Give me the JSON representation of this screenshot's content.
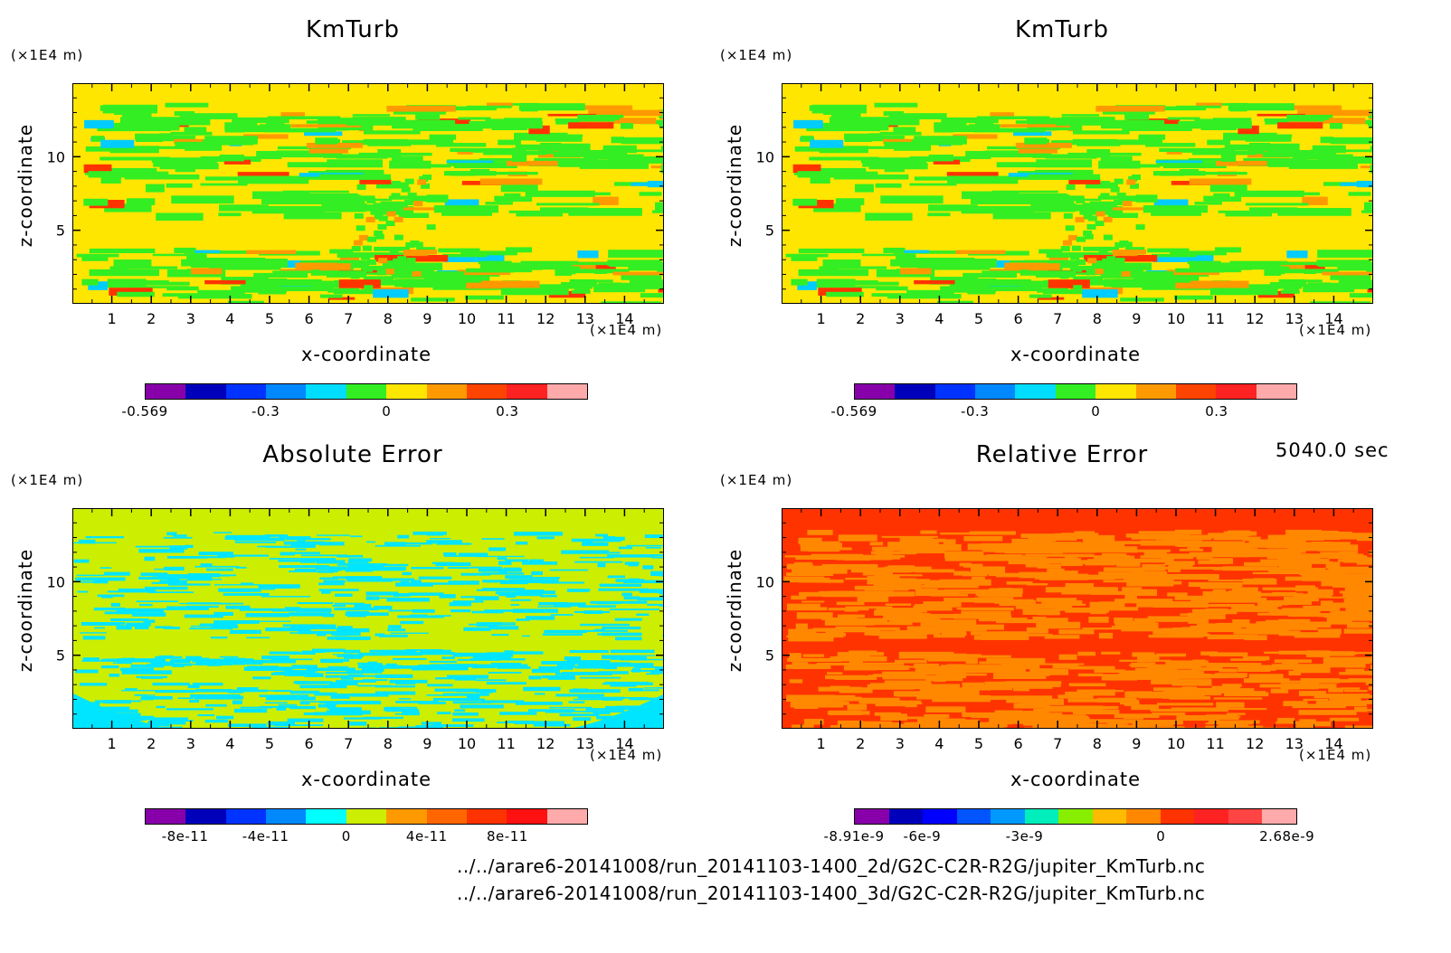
{
  "time_label": "5040.0 sec",
  "file_paths": [
    "../../arare6-20141008/run_20141103-1400_2d/G2C-C2R-R2G/jupiter_KmTurb.nc",
    "../../arare6-20141008/run_20141103-1400_3d/G2C-C2R-R2G/jupiter_KmTurb.nc"
  ],
  "chart_data": [
    {
      "type": "heatmap",
      "title": "KmTurb",
      "xlabel": "x-coordinate",
      "ylabel": "z-coordinate",
      "x_scale_label": "(×1E4 m)",
      "y_scale_label": "(×1E4 m)",
      "xlim": [
        0,
        15
      ],
      "ylim": [
        0,
        15
      ],
      "x_ticks": [
        "1",
        "2",
        "3",
        "4",
        "5",
        "6",
        "7",
        "8",
        "9",
        "10",
        "11",
        "12",
        "13",
        "14"
      ],
      "y_ticks": [
        "5",
        "10"
      ],
      "background": "#ffe600",
      "pattern_colors": [
        "#33ee22",
        "#ff9900",
        "#ff3300",
        "#00ccff"
      ],
      "colorbar": {
        "colors": [
          "#8800aa",
          "#0000bb",
          "#0033ff",
          "#0088ff",
          "#00ddff",
          "#33ee22",
          "#ffe600",
          "#ff9900",
          "#ff4400",
          "#ff2222",
          "#ffaaaa"
        ],
        "tick_labels": [
          "-0.569",
          "-0.3",
          "0",
          "0.3"
        ]
      }
    },
    {
      "type": "heatmap",
      "title": "KmTurb",
      "xlabel": "x-coordinate",
      "ylabel": "z-coordinate",
      "x_scale_label": "(×1E4 m)",
      "y_scale_label": "(×1E4 m)",
      "xlim": [
        0,
        15
      ],
      "ylim": [
        0,
        15
      ],
      "x_ticks": [
        "1",
        "2",
        "3",
        "4",
        "5",
        "6",
        "7",
        "8",
        "9",
        "10",
        "11",
        "12",
        "13",
        "14"
      ],
      "y_ticks": [
        "5",
        "10"
      ],
      "background": "#ffe600",
      "pattern_colors": [
        "#33ee22",
        "#ff9900",
        "#ff3300",
        "#00ccff"
      ],
      "colorbar": {
        "colors": [
          "#8800aa",
          "#0000bb",
          "#0033ff",
          "#0088ff",
          "#00ddff",
          "#33ee22",
          "#ffe600",
          "#ff9900",
          "#ff4400",
          "#ff2222",
          "#ffaaaa"
        ],
        "tick_labels": [
          "-0.569",
          "-0.3",
          "0",
          "0.3"
        ]
      }
    },
    {
      "type": "heatmap",
      "title": "Absolute Error",
      "xlabel": "x-coordinate",
      "ylabel": "z-coordinate",
      "x_scale_label": "(×1E4 m)",
      "y_scale_label": "(×1E4 m)",
      "xlim": [
        0,
        15
      ],
      "ylim": [
        0,
        15
      ],
      "x_ticks": [
        "1",
        "2",
        "3",
        "4",
        "5",
        "6",
        "7",
        "8",
        "9",
        "10",
        "11",
        "12",
        "13",
        "14"
      ],
      "y_ticks": [
        "5",
        "10"
      ],
      "background": "#ccee00",
      "pattern_colors": [
        "#00e5ff"
      ],
      "colorbar": {
        "colors": [
          "#8800aa",
          "#0000bb",
          "#0033ff",
          "#0088ff",
          "#00ffff",
          "#ccee00",
          "#ff9900",
          "#ff6600",
          "#ff3300",
          "#ff1111",
          "#ffaaaa"
        ],
        "tick_labels": [
          "-8e-11",
          "-4e-11",
          "0",
          "4e-11",
          "8e-11"
        ]
      }
    },
    {
      "type": "heatmap",
      "title": "Relative Error",
      "xlabel": "x-coordinate",
      "ylabel": "z-coordinate",
      "x_scale_label": "(×1E4 m)",
      "y_scale_label": "(×1E4 m)",
      "xlim": [
        0,
        15
      ],
      "ylim": [
        0,
        15
      ],
      "x_ticks": [
        "1",
        "2",
        "3",
        "4",
        "5",
        "6",
        "7",
        "8",
        "9",
        "10",
        "11",
        "12",
        "13",
        "14"
      ],
      "y_ticks": [
        "5",
        "10"
      ],
      "background": "#ff3300",
      "pattern_colors": [
        "#ff8800"
      ],
      "colorbar": {
        "colors": [
          "#8800aa",
          "#0000bb",
          "#0000ff",
          "#0055ff",
          "#0099ff",
          "#00eebb",
          "#88ee00",
          "#ffbb00",
          "#ff8800",
          "#ff3300",
          "#ff2222",
          "#ff4444",
          "#ffaaaa"
        ],
        "tick_labels": [
          "-8.91e-9",
          "-6e-9",
          "-3e-9",
          "0",
          "2.68e-9"
        ]
      }
    }
  ]
}
